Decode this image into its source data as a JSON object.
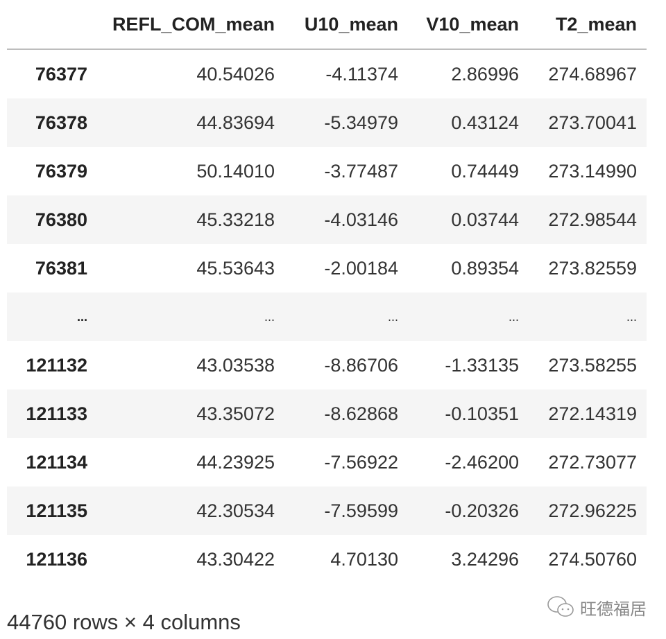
{
  "table": {
    "columns": [
      "",
      "REFL_COM_mean",
      "U10_mean",
      "V10_mean",
      "T2_mean"
    ],
    "rows": [
      {
        "index": "76377",
        "values": [
          "40.54026",
          "-4.11374",
          "2.86996",
          "274.68967"
        ]
      },
      {
        "index": "76378",
        "values": [
          "44.83694",
          "-5.34979",
          "0.43124",
          "273.70041"
        ]
      },
      {
        "index": "76379",
        "values": [
          "50.14010",
          "-3.77487",
          "0.74449",
          "273.14990"
        ]
      },
      {
        "index": "76380",
        "values": [
          "45.33218",
          "-4.03146",
          "0.03744",
          "272.98544"
        ]
      },
      {
        "index": "76381",
        "values": [
          "45.53643",
          "-2.00184",
          "0.89354",
          "273.82559"
        ]
      },
      {
        "index": "...",
        "values": [
          "...",
          "...",
          "...",
          "..."
        ]
      },
      {
        "index": "121132",
        "values": [
          "43.03538",
          "-8.86706",
          "-1.33135",
          "273.58255"
        ]
      },
      {
        "index": "121133",
        "values": [
          "43.35072",
          "-8.62868",
          "-0.10351",
          "272.14319"
        ]
      },
      {
        "index": "121134",
        "values": [
          "44.23925",
          "-7.56922",
          "-2.46200",
          "272.73077"
        ]
      },
      {
        "index": "121135",
        "values": [
          "42.30534",
          "-7.59599",
          "-0.20326",
          "272.96225"
        ]
      },
      {
        "index": "121136",
        "values": [
          "43.30422",
          "4.70130",
          "3.24296",
          "274.50760"
        ]
      }
    ]
  },
  "caption": "44760 rows × 4 columns",
  "watermark": {
    "text": "旺德福居",
    "icon": "wechat-icon"
  }
}
